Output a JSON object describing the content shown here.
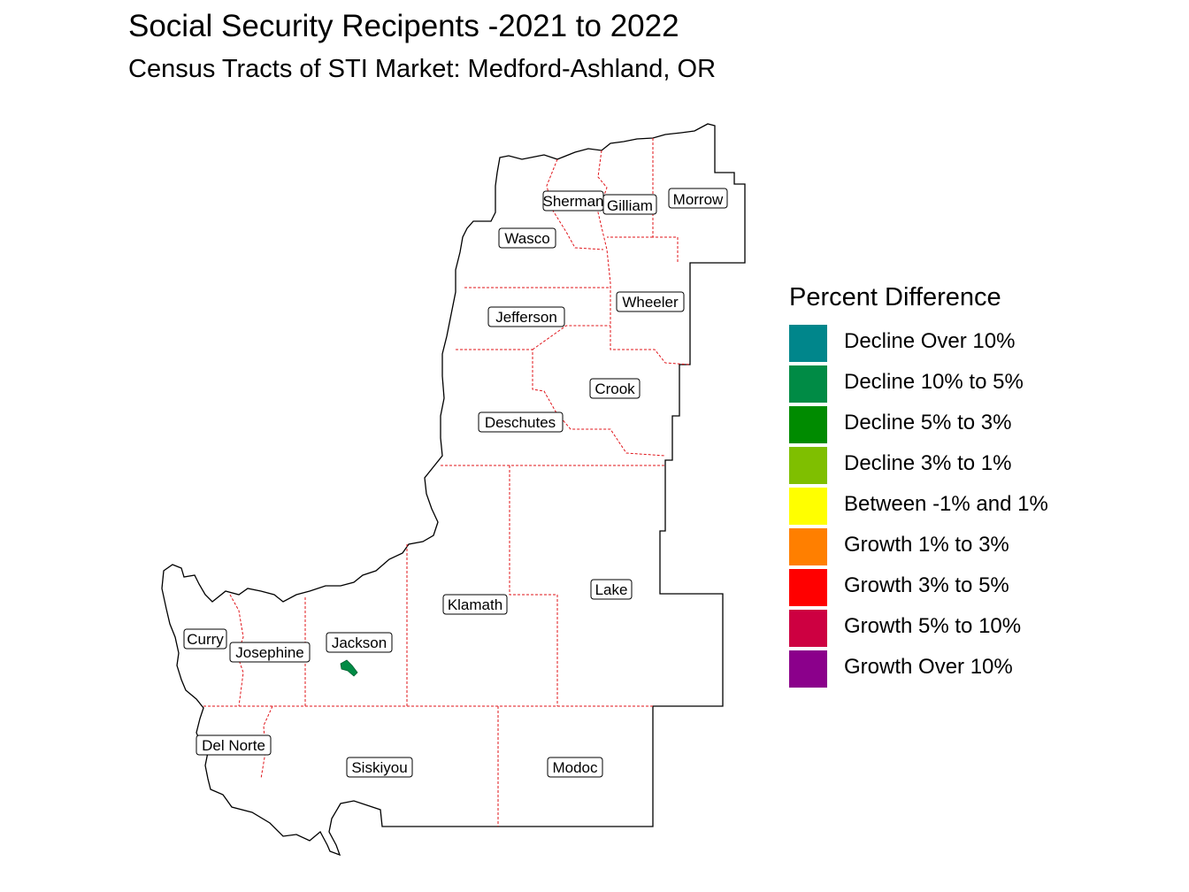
{
  "title": "Social Security Recipents -2021 to 2022",
  "subtitle": "Census Tracts of STI Market: Medford-Ashland, OR",
  "legend": {
    "title": "Percent Difference",
    "items": [
      {
        "label": "Decline Over 10%",
        "color": "#00868B"
      },
      {
        "label": "Decline 10% to 5%",
        "color": "#008B45"
      },
      {
        "label": "Decline 5% to 3%",
        "color": "#008B00"
      },
      {
        "label": "Decline 3% to 1%",
        "color": "#7FBF00"
      },
      {
        "label": "Between -1% and 1%",
        "color": "#FFFF00"
      },
      {
        "label": "Growth 1% to 3%",
        "color": "#FF7F00"
      },
      {
        "label": "Growth 3% to 5%",
        "color": "#FF0000"
      },
      {
        "label": "Growth 5% to 10%",
        "color": "#CD0041"
      },
      {
        "label": "Growth Over 10%",
        "color": "#8B008B"
      }
    ]
  },
  "counties": {
    "sherman": "Sherman",
    "gilliam": "Gilliam",
    "morrow": "Morrow",
    "wasco": "Wasco",
    "wheeler": "Wheeler",
    "jefferson": "Jefferson",
    "crook": "Crook",
    "deschutes": "Deschutes",
    "lake": "Lake",
    "klamath": "Klamath",
    "jackson": "Jackson",
    "curry": "Curry",
    "josephine": "Josephine",
    "del_norte": "Del Norte",
    "siskiyou": "Siskiyou",
    "modoc": "Modoc"
  },
  "tract_fill_color": "#008B45"
}
